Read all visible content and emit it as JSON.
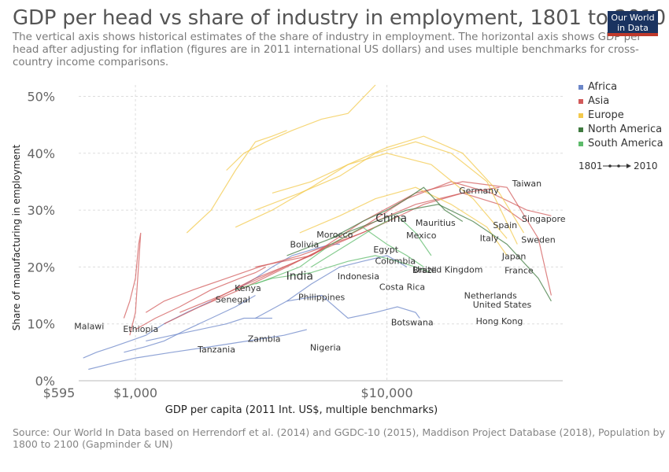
{
  "header": {
    "title": "GDP per head vs share of industry in employment, 1801 to 2010",
    "subtitle": "The vertical axis shows historical estimates of the share of industry in employment. The horizontal axis shows GDP per head after adjusting for inflation (figures are in 2011 international US dollars) and uses multiple benchmarks for cross-country income comparisons.",
    "logo_line1": "Our World",
    "logo_line2": "in Data"
  },
  "footer": {
    "source": "Source: Our World In Data based on Herrendorf et al. (2014) and GGDC-10 (2015), Maddison Project Database (2018), Population by 1800 to 2100 (Gapminder & UN)"
  },
  "colors": {
    "Africa": "#6b86c8",
    "Asia": "#d25a5a",
    "Europe": "#f3c94c",
    "North America": "#3f7a3f",
    "South America": "#5dbb6b",
    "grid": "#dddddd",
    "axis_text": "#666666",
    "label_text": "#333333"
  },
  "chart_data": {
    "type": "scatter",
    "title": "GDP per head vs share of industry in employment, 1801 to 2010",
    "xlabel": "GDP per capita (2011 Int. US$, multiple benchmarks)",
    "ylabel": "Share of manufacturing in employment",
    "x_scale": "log",
    "xlim": [
      595,
      50000
    ],
    "ylim": [
      0,
      52
    ],
    "x_ticks": [
      {
        "value": 595,
        "label": "$595"
      },
      {
        "value": 1000,
        "label": "$1,000"
      },
      {
        "value": 10000,
        "label": "$10,000"
      }
    ],
    "y_ticks": [
      {
        "value": 0,
        "label": "0%"
      },
      {
        "value": 10,
        "label": "10%"
      },
      {
        "value": 20,
        "label": "20%"
      },
      {
        "value": 30,
        "label": "30%"
      },
      {
        "value": 40,
        "label": "40%"
      },
      {
        "value": 50,
        "label": "50%"
      }
    ],
    "grid": true,
    "legend_position": "top-right",
    "legend": [
      "Africa",
      "Asia",
      "Europe",
      "North America",
      "South America"
    ],
    "time_range": {
      "start": "1801",
      "end": "2010"
    },
    "series": [
      {
        "region": "Africa",
        "x": [
          620,
          700,
          820,
          950,
          1100,
          1300,
          1600,
          2000
        ],
        "y": [
          4,
          5,
          6,
          7,
          8,
          10,
          12,
          14
        ]
      },
      {
        "region": "Africa",
        "x": [
          650,
          800,
          1000,
          1400,
          2000,
          2800,
          3900,
          4800
        ],
        "y": [
          2,
          3,
          4,
          5,
          6,
          7,
          8,
          9
        ]
      },
      {
        "region": "Africa",
        "x": [
          900,
          1100,
          1300,
          1600,
          2000,
          2500,
          3000
        ],
        "y": [
          5,
          6,
          7,
          9,
          11,
          13,
          15
        ]
      },
      {
        "region": "Africa",
        "x": [
          1100,
          1400,
          1800,
          2300,
          2700,
          3200,
          3500
        ],
        "y": [
          7,
          8,
          9,
          10,
          11,
          11,
          11
        ]
      },
      {
        "region": "Africa",
        "x": [
          2500,
          3000,
          3500,
          4200,
          5000,
          6000,
          6500
        ],
        "y": [
          16,
          18,
          20,
          22,
          23,
          24,
          24
        ]
      },
      {
        "region": "Africa",
        "x": [
          3000,
          4000,
          5000,
          6500,
          8000,
          10000,
          11000,
          12000
        ],
        "y": [
          11,
          14,
          17,
          20,
          21,
          22,
          21,
          20
        ]
      },
      {
        "region": "Africa",
        "x": [
          4000,
          5500,
          7000,
          9000,
          11000,
          13000,
          13500
        ],
        "y": [
          14,
          15,
          11,
          12,
          13,
          12,
          11
        ]
      },
      {
        "region": "Asia",
        "x": [
          900,
          950,
          1000,
          1030,
          1050,
          1000,
          950
        ],
        "y": [
          11,
          14,
          18,
          24,
          26,
          12,
          8
        ]
      },
      {
        "region": "Asia",
        "x": [
          1000,
          1200,
          1500,
          2000,
          2600,
          3000,
          3300
        ],
        "y": [
          9,
          11,
          13,
          16,
          18,
          19,
          20
        ]
      },
      {
        "region": "Asia",
        "x": [
          1100,
          1300,
          1700,
          2300,
          3100,
          4500,
          6000,
          8000,
          10000
        ],
        "y": [
          12,
          14,
          16,
          18,
          20,
          22,
          24,
          26,
          28
        ]
      },
      {
        "region": "Asia",
        "x": [
          1300,
          1800,
          2600,
          4000,
          6000,
          9000,
          13000,
          20000,
          28000
        ],
        "y": [
          10,
          13,
          16,
          20,
          24,
          28,
          31,
          33,
          34
        ]
      },
      {
        "region": "Asia",
        "x": [
          1500,
          2200,
          3500,
          5500,
          9000,
          14000,
          20000,
          28000,
          35000
        ],
        "y": [
          12,
          15,
          19,
          23,
          27,
          31,
          33,
          31,
          28
        ]
      },
      {
        "region": "Asia",
        "x": [
          2000,
          3000,
          5000,
          8000,
          12000,
          18000,
          26000,
          36000,
          45000
        ],
        "y": [
          14,
          18,
          22,
          27,
          32,
          35,
          33,
          30,
          29
        ]
      },
      {
        "region": "Asia",
        "x": [
          3000,
          5000,
          8000,
          13000,
          20000,
          30000,
          40000,
          45000
        ],
        "y": [
          20,
          22,
          28,
          33,
          35,
          34,
          25,
          15
        ]
      },
      {
        "region": "Europe",
        "x": [
          1600,
          2000,
          2500,
          3000,
          3500,
          4000
        ],
        "y": [
          26,
          30,
          37,
          42,
          43,
          44
        ]
      },
      {
        "region": "Europe",
        "x": [
          2300,
          2700,
          3300,
          4200,
          5500,
          7000,
          9000
        ],
        "y": [
          37,
          40,
          42,
          44,
          46,
          47,
          52
        ]
      },
      {
        "region": "Europe",
        "x": [
          2500,
          3500,
          5000,
          7000,
          10000,
          14000,
          20000,
          28000,
          35000
        ],
        "y": [
          27,
          30,
          34,
          38,
          41,
          43,
          40,
          33,
          26
        ]
      },
      {
        "region": "Europe",
        "x": [
          3000,
          4500,
          6500,
          9000,
          13000,
          18000,
          25000,
          33000
        ],
        "y": [
          30,
          33,
          36,
          40,
          42,
          40,
          35,
          24
        ]
      },
      {
        "region": "Europe",
        "x": [
          3500,
          5000,
          7000,
          10000,
          15000,
          22000,
          30000
        ],
        "y": [
          33,
          35,
          38,
          40,
          38,
          32,
          25
        ]
      },
      {
        "region": "Europe",
        "x": [
          4500,
          6500,
          9000,
          13000,
          18000,
          25000,
          30000
        ],
        "y": [
          26,
          29,
          32,
          34,
          31,
          27,
          22
        ]
      },
      {
        "region": "North America",
        "x": [
          4000,
          6000,
          8000,
          10000,
          12000,
          14000,
          17000,
          20000
        ],
        "y": [
          22,
          25,
          28,
          30,
          32,
          34,
          30,
          28
        ]
      },
      {
        "region": "North America",
        "x": [
          6000,
          9000,
          12000,
          16000,
          22000,
          30000,
          40000,
          45000
        ],
        "y": [
          25,
          28,
          30,
          31,
          28,
          24,
          18,
          14
        ]
      },
      {
        "region": "South America",
        "x": [
          2500,
          3500,
          5000,
          7000,
          9000,
          11000,
          13000,
          15000
        ],
        "y": [
          16,
          18,
          19,
          21,
          22,
          21,
          20,
          19
        ]
      },
      {
        "region": "South America",
        "x": [
          3000,
          4500,
          6000,
          8000,
          10000,
          12000,
          14000
        ],
        "y": [
          17,
          20,
          24,
          27,
          24,
          22,
          20
        ]
      },
      {
        "region": "South America",
        "x": [
          5000,
          7000,
          9000,
          11000,
          13000,
          15000
        ],
        "y": [
          20,
          24,
          27,
          29,
          26,
          22
        ]
      }
    ],
    "country_labels": [
      {
        "name": "China",
        "x": 10400,
        "y": 28.5,
        "emphasis": true
      },
      {
        "name": "India",
        "x": 4500,
        "y": 18.3,
        "emphasis": true
      },
      {
        "name": "Taiwan",
        "x": 36000,
        "y": 34.7
      },
      {
        "name": "Germany",
        "x": 23200,
        "y": 33.5
      },
      {
        "name": "Singapore",
        "x": 42000,
        "y": 28.5
      },
      {
        "name": "Mauritius",
        "x": 15600,
        "y": 27.8
      },
      {
        "name": "Spain",
        "x": 29500,
        "y": 27.4
      },
      {
        "name": "Mexico",
        "x": 13700,
        "y": 25.6
      },
      {
        "name": "Italy",
        "x": 25500,
        "y": 25.1
      },
      {
        "name": "Sweden",
        "x": 40000,
        "y": 24.8
      },
      {
        "name": "Morocco",
        "x": 6200,
        "y": 25.7
      },
      {
        "name": "Bolivia",
        "x": 4700,
        "y": 24.0
      },
      {
        "name": "Egypt",
        "x": 9900,
        "y": 23.1
      },
      {
        "name": "Japan",
        "x": 32000,
        "y": 21.9
      },
      {
        "name": "Colombia",
        "x": 10800,
        "y": 21.1
      },
      {
        "name": "Brazil",
        "x": 14100,
        "y": 19.5
      },
      {
        "name": "United Kingdom",
        "x": 17500,
        "y": 19.6
      },
      {
        "name": "France",
        "x": 33500,
        "y": 19.4
      },
      {
        "name": "Indonesia",
        "x": 7700,
        "y": 18.4
      },
      {
        "name": "Kenya",
        "x": 2800,
        "y": 16.3
      },
      {
        "name": "Costa Rica",
        "x": 11500,
        "y": 16.5
      },
      {
        "name": "Senegal",
        "x": 2440,
        "y": 14.3
      },
      {
        "name": "Philippines",
        "x": 5500,
        "y": 14.7
      },
      {
        "name": "Netherlands",
        "x": 25800,
        "y": 15.0
      },
      {
        "name": "United States",
        "x": 28700,
        "y": 13.4
      },
      {
        "name": "Malawi",
        "x": 655,
        "y": 9.6
      },
      {
        "name": "Ethiopia",
        "x": 1050,
        "y": 9.1
      },
      {
        "name": "Botswana",
        "x": 12600,
        "y": 10.3
      },
      {
        "name": "Hong Kong",
        "x": 28000,
        "y": 10.5
      },
      {
        "name": "Zambia",
        "x": 3250,
        "y": 7.4
      },
      {
        "name": "Nigeria",
        "x": 5700,
        "y": 5.9
      },
      {
        "name": "Tanzania",
        "x": 2100,
        "y": 5.5
      }
    ]
  }
}
